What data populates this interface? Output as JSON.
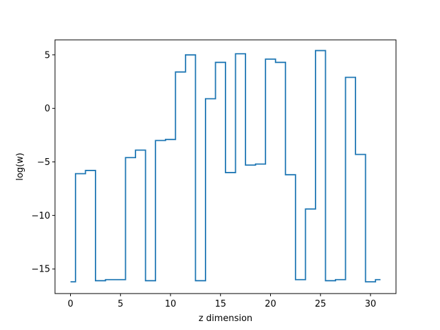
{
  "chart_data": {
    "type": "line",
    "drawstyle": "steps-mid",
    "title": "",
    "xlabel": "z dimension",
    "ylabel": "log(w)",
    "xlim": [
      -1.55,
      32.55
    ],
    "ylim": [
      -17.3,
      6.4
    ],
    "xticks": [
      0,
      5,
      10,
      15,
      20,
      25,
      30
    ],
    "xtick_labels": [
      "0",
      "5",
      "10",
      "15",
      "20",
      "25",
      "30"
    ],
    "yticks": [
      5,
      0,
      -5,
      -10,
      -15
    ],
    "ytick_labels": [
      "5",
      "0",
      "−5",
      "−10",
      "−15"
    ],
    "grid": false,
    "legend": false,
    "series": [
      {
        "color": "#1f77b4",
        "x": [
          0,
          1,
          2,
          3,
          4,
          5,
          6,
          7,
          8,
          9,
          10,
          11,
          12,
          13,
          14,
          15,
          16,
          17,
          18,
          19,
          20,
          21,
          22,
          23,
          24,
          25,
          26,
          27,
          28,
          29,
          30,
          31
        ],
        "y": [
          -16.2,
          -6.1,
          -5.8,
          -16.1,
          -16.0,
          -16.0,
          -4.6,
          -3.9,
          -16.1,
          -3.0,
          -2.9,
          3.4,
          5.0,
          -16.1,
          0.9,
          4.3,
          -6.0,
          5.1,
          -5.3,
          -5.2,
          4.6,
          4.3,
          -6.2,
          -16.0,
          -9.4,
          5.4,
          -16.1,
          -16.0,
          2.9,
          -4.3,
          -16.2,
          -16.0
        ]
      }
    ]
  }
}
